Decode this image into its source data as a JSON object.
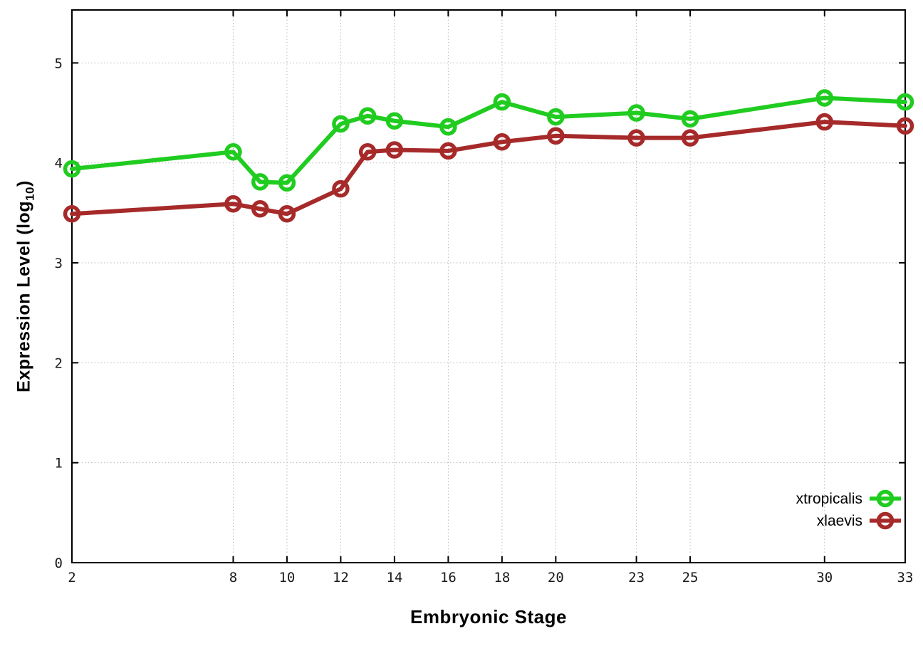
{
  "labels": {
    "xlabel": "Embryonic Stage",
    "ylabel_main": "Expression Level (log",
    "ylabel_sub": "10",
    "ylabel_close": ")"
  },
  "chart_data": {
    "type": "line",
    "title": "",
    "xlabel": "Embryonic Stage",
    "ylabel": "Expression Level (log10)",
    "x": [
      2,
      8,
      9,
      10,
      12,
      13,
      14,
      16,
      18,
      20,
      23,
      25,
      30,
      33
    ],
    "x_ticks": [
      "2",
      "8",
      "10",
      "12",
      "14",
      "16",
      "18",
      "20",
      "23",
      "25",
      "30",
      "33"
    ],
    "x_tick_values": [
      2,
      8,
      10,
      12,
      14,
      16,
      18,
      20,
      23,
      25,
      30,
      33
    ],
    "y_ticks": [
      "0",
      "1",
      "2",
      "3",
      "4",
      "5"
    ],
    "y_tick_values": [
      0,
      1,
      2,
      3,
      4,
      5
    ],
    "xlim": [
      2,
      33
    ],
    "ylim": [
      0,
      5.53
    ],
    "grid": true,
    "grid_style": "dotted",
    "legend_position": "bottom-right",
    "marker": "open-circle",
    "series": [
      {
        "name": "xtropicalis",
        "color": "#20cc20",
        "values": [
          3.94,
          4.11,
          3.81,
          3.8,
          4.39,
          4.47,
          4.42,
          4.36,
          4.61,
          4.46,
          4.5,
          4.44,
          4.65,
          4.61
        ]
      },
      {
        "name": "xlaevis",
        "color": "#a62a2a",
        "values": [
          3.49,
          3.59,
          3.54,
          3.49,
          3.74,
          4.11,
          4.13,
          4.12,
          4.21,
          4.27,
          4.25,
          4.25,
          4.41,
          4.37
        ]
      }
    ]
  }
}
